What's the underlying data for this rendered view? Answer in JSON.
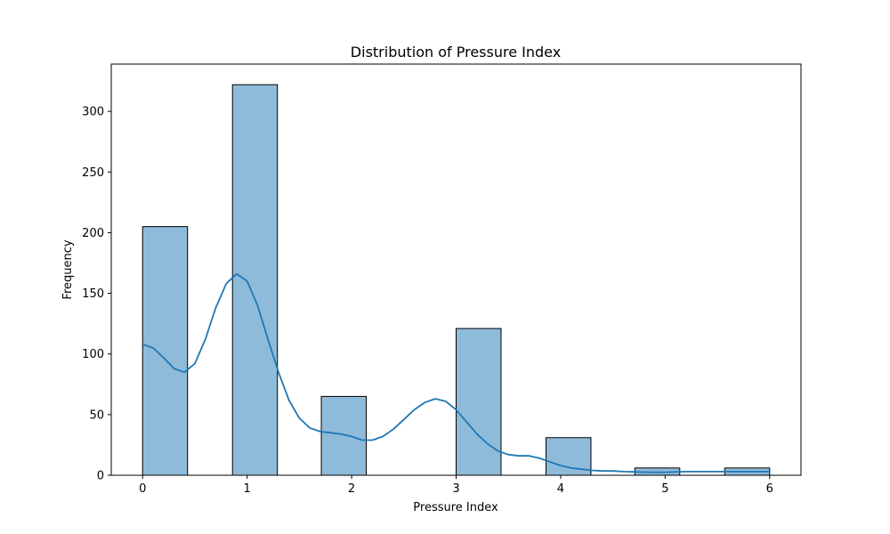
{
  "chart_data": {
    "type": "bar",
    "title": "Distribution of Pressure Index",
    "xlabel": "Pressure Index",
    "ylabel": "Frequency",
    "xlim": [
      -0.3,
      6.3
    ],
    "ylim": [
      0,
      339
    ],
    "xticks": [
      0,
      1,
      2,
      3,
      4,
      5,
      6
    ],
    "yticks": [
      0,
      50,
      100,
      150,
      200,
      250,
      300
    ],
    "grid": false,
    "bars": [
      {
        "x0": 0.0,
        "x1": 0.43,
        "value": 205
      },
      {
        "x0": 0.86,
        "x1": 1.29,
        "value": 322
      },
      {
        "x0": 1.71,
        "x1": 2.14,
        "value": 65
      },
      {
        "x0": 3.0,
        "x1": 3.43,
        "value": 121
      },
      {
        "x0": 3.86,
        "x1": 4.29,
        "value": 31
      },
      {
        "x0": 4.71,
        "x1": 5.14,
        "value": 6
      },
      {
        "x0": 5.57,
        "x1": 6.0,
        "value": 6
      }
    ],
    "kde": {
      "x": [
        0,
        0.1,
        0.2,
        0.3,
        0.4,
        0.5,
        0.6,
        0.7,
        0.8,
        0.9,
        1.0,
        1.1,
        1.2,
        1.3,
        1.4,
        1.5,
        1.6,
        1.7,
        1.8,
        1.9,
        2.0,
        2.1,
        2.2,
        2.3,
        2.4,
        2.5,
        2.6,
        2.7,
        2.8,
        2.9,
        3.0,
        3.1,
        3.2,
        3.3,
        3.4,
        3.5,
        3.6,
        3.7,
        3.8,
        3.9,
        4.0,
        4.1,
        4.2,
        4.3,
        4.4,
        4.5,
        4.6,
        4.7,
        4.8,
        4.9,
        5.0,
        5.2,
        5.4,
        5.6,
        5.8,
        6.0
      ],
      "y": [
        108,
        105,
        97,
        88,
        85,
        92,
        112,
        138,
        158,
        166,
        160,
        140,
        112,
        85,
        62,
        47,
        39,
        36,
        35,
        34,
        32,
        29,
        29,
        32,
        38,
        46,
        54,
        60,
        63,
        61,
        54,
        44,
        34,
        26,
        20,
        17,
        16,
        16,
        14,
        11,
        8,
        6,
        5,
        4,
        3.5,
        3.5,
        3,
        2.8,
        2.6,
        2.4,
        2.5,
        3,
        3,
        3,
        3,
        3
      ]
    },
    "colors": {
      "bar_fill": "#8fbbda",
      "bar_edge": "#000000",
      "kde_line": "#1f77b4"
    }
  }
}
